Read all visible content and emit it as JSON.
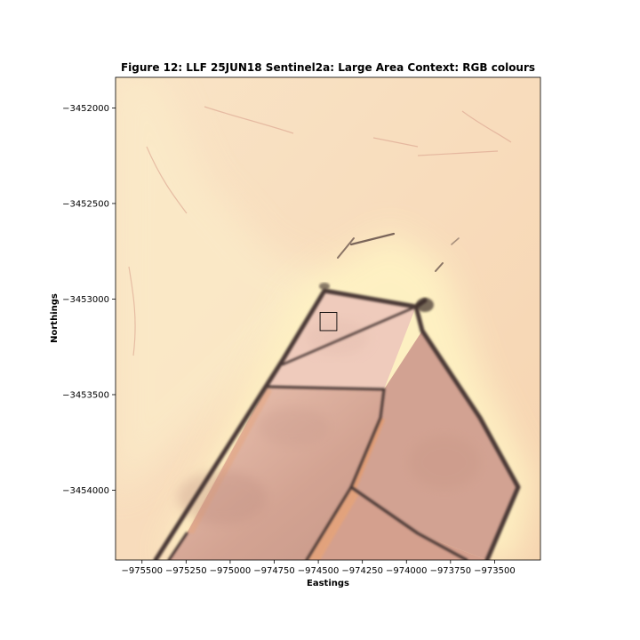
{
  "figure": {
    "title": "Figure 12: LLF 25JUN18  Sentinel2a: Large Area Context: RGB colours",
    "xlabel": "Eastings",
    "ylabel": "Northings"
  },
  "axes": {
    "xlim": [
      -975650,
      -973240
    ],
    "ylim": [
      -3454365,
      -3451840
    ],
    "xticks": [
      {
        "value": -975500,
        "label": "−975500"
      },
      {
        "value": -975250,
        "label": "−975250"
      },
      {
        "value": -975000,
        "label": "−975000"
      },
      {
        "value": -974750,
        "label": "−974750"
      },
      {
        "value": -974500,
        "label": "−974500"
      },
      {
        "value": -974250,
        "label": "−974250"
      },
      {
        "value": -974000,
        "label": "−974000"
      },
      {
        "value": -973750,
        "label": "−973750"
      },
      {
        "value": -973500,
        "label": "−973500"
      }
    ],
    "yticks": [
      {
        "value": -3452000,
        "label": "−3452000"
      },
      {
        "value": -3452500,
        "label": "−3452500"
      },
      {
        "value": -3453000,
        "label": "−3453000"
      },
      {
        "value": -3453500,
        "label": "−3453500"
      },
      {
        "value": -3454000,
        "label": "−3454000"
      }
    ]
  },
  "map": {
    "colors": {
      "sand": "#f7dcbb",
      "sand_light": "#fbf0cc",
      "halo_yellow": "#fff5c8",
      "pan_light": "#f1cdbb",
      "pan_mid": "#d9aa99",
      "pan_dark": "#c99686",
      "pan_orange": "#e4a37a",
      "edge": "#4a3834",
      "frame": "#000000"
    },
    "study_box": {
      "x_min": -974490,
      "x_max": -974395,
      "y_min": -3453165,
      "y_max": -3453070
    }
  }
}
